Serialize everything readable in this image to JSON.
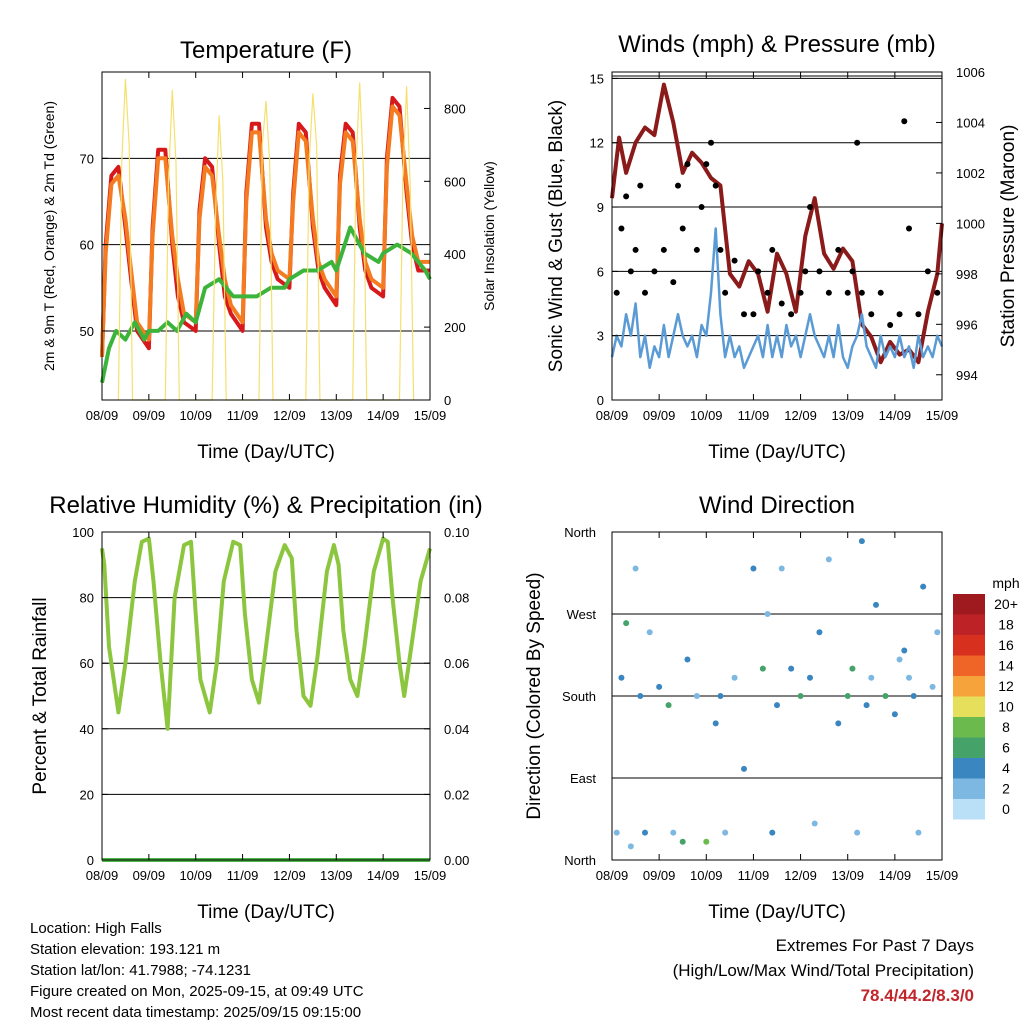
{
  "chart_data": [
    {
      "id": "temp",
      "type": "line",
      "title": "Temperature (F)",
      "xlabel": "Time (Day/UTC)",
      "ylabel": "2m & 9m T (Red, Orange) & 2m Td (Green)",
      "y2label": "Solar Insolation (Yellow)",
      "x_ticks": [
        "08/09",
        "09/09",
        "10/09",
        "11/09",
        "12/09",
        "13/09",
        "14/09",
        "15/09"
      ],
      "ylim": [
        42,
        80
      ],
      "y_ticks": [
        50,
        60,
        70
      ],
      "y2lim": [
        0,
        900
      ],
      "y2_ticks": [
        0,
        200,
        400,
        600,
        800
      ],
      "grid": "horizontal",
      "series": [
        {
          "color": "#d7191c",
          "x": [
            0,
            0.08,
            0.2,
            0.35,
            0.5,
            0.62,
            0.75,
            1,
            1.08,
            1.2,
            1.35,
            1.5,
            1.62,
            1.75,
            2,
            2.08,
            2.2,
            2.35,
            2.5,
            2.62,
            2.75,
            3,
            3.08,
            3.2,
            3.35,
            3.5,
            3.62,
            3.75,
            4,
            4.08,
            4.2,
            4.35,
            4.5,
            4.62,
            4.75,
            5,
            5.08,
            5.2,
            5.35,
            5.5,
            5.62,
            5.75,
            6,
            6.08,
            6.2,
            6.35,
            6.5,
            6.62,
            6.75,
            7
          ],
          "values": [
            47,
            60,
            68,
            69,
            62,
            56,
            50,
            48,
            62,
            71,
            71,
            60,
            54,
            51,
            50,
            64,
            70,
            69,
            60,
            54,
            52,
            50,
            66,
            74,
            74,
            62,
            58,
            56,
            55,
            66,
            74,
            73,
            62,
            57,
            55,
            53,
            68,
            74,
            73,
            62,
            57,
            55,
            54,
            70,
            77,
            76,
            66,
            60,
            57,
            57
          ]
        },
        {
          "color": "#f47b20",
          "x": [
            0,
            0.08,
            0.2,
            0.35,
            0.5,
            0.62,
            0.75,
            1,
            1.08,
            1.2,
            1.35,
            1.5,
            1.62,
            1.75,
            2,
            2.08,
            2.2,
            2.35,
            2.5,
            2.62,
            2.75,
            3,
            3.08,
            3.2,
            3.35,
            3.5,
            3.62,
            3.75,
            4,
            4.08,
            4.2,
            4.35,
            4.5,
            4.62,
            4.75,
            5,
            5.08,
            5.2,
            5.35,
            5.5,
            5.62,
            5.75,
            6,
            6.08,
            6.2,
            6.35,
            6.5,
            6.62,
            6.75,
            7
          ],
          "values": [
            47,
            59,
            67,
            68,
            63,
            57,
            51,
            49,
            61,
            70,
            70,
            61,
            56,
            52,
            51,
            63,
            69,
            68,
            61,
            56,
            53,
            51,
            65,
            73,
            73,
            63,
            59,
            57,
            56,
            65,
            73,
            72,
            63,
            58,
            56,
            54,
            67,
            73,
            72,
            63,
            58,
            56,
            55,
            69,
            76,
            75,
            67,
            61,
            58,
            58
          ]
        },
        {
          "color": "#3cb43c",
          "x": [
            0,
            0.15,
            0.3,
            0.5,
            0.7,
            0.9,
            1,
            1.2,
            1.4,
            1.6,
            1.8,
            2,
            2.2,
            2.5,
            2.8,
            3,
            3.3,
            3.6,
            3.9,
            4,
            4.3,
            4.6,
            4.9,
            5,
            5.3,
            5.6,
            5.9,
            6,
            6.3,
            6.6,
            6.9,
            7
          ],
          "values": [
            44,
            48,
            50,
            49,
            51,
            49,
            50,
            50,
            51,
            50,
            52,
            51,
            55,
            56,
            54,
            54,
            54,
            55,
            55,
            56,
            57,
            57,
            58,
            57,
            62,
            59,
            58,
            59,
            60,
            59,
            57,
            56
          ]
        },
        {
          "color": "#f5e06e",
          "axis": "y2",
          "x": [
            0.35,
            0.42,
            0.5,
            0.58,
            0.65,
            1.35,
            1.42,
            1.5,
            1.58,
            1.65,
            2.35,
            2.42,
            2.5,
            2.58,
            2.65,
            3.35,
            3.42,
            3.5,
            3.58,
            3.65,
            4.35,
            4.42,
            4.5,
            4.58,
            4.65,
            5.35,
            5.42,
            5.5,
            5.58,
            5.65,
            6.35,
            6.42,
            6.5,
            6.58,
            6.65
          ],
          "values": [
            0,
            650,
            880,
            700,
            0,
            0,
            600,
            850,
            650,
            0,
            0,
            500,
            780,
            600,
            0,
            0,
            700,
            820,
            650,
            0,
            0,
            650,
            840,
            700,
            0,
            0,
            640,
            870,
            620,
            0,
            0,
            600,
            860,
            580,
            0
          ]
        }
      ]
    },
    {
      "id": "wind",
      "type": "line",
      "title": "Winds (mph) & Pressure (mb)",
      "xlabel": "Time (Day/UTC)",
      "ylabel": "Sonic Wind & Gust (Blue, Black)",
      "y2label": "Station Pressure (Maroon)",
      "x_ticks": [
        "08/09",
        "09/09",
        "10/09",
        "11/09",
        "12/09",
        "13/09",
        "14/09",
        "15/09"
      ],
      "ylim": [
        0,
        15.3
      ],
      "y_ticks": [
        0,
        3,
        6,
        9,
        12,
        15
      ],
      "y2lim": [
        993,
        1006
      ],
      "y2_ticks": [
        994,
        996,
        998,
        1000,
        1002,
        1004,
        1006
      ],
      "grid": "horizontal",
      "series": [
        {
          "color": "#8b1a1a",
          "axis": "y2",
          "x": [
            0,
            0.15,
            0.3,
            0.5,
            0.7,
            0.9,
            1.1,
            1.3,
            1.5,
            1.7,
            1.9,
            2.1,
            2.3,
            2.5,
            2.7,
            2.9,
            3.1,
            3.3,
            3.5,
            3.7,
            3.9,
            4.1,
            4.3,
            4.5,
            4.7,
            4.9,
            5.1,
            5.3,
            5.5,
            5.7,
            5.9,
            6.1,
            6.3,
            6.5,
            6.7,
            6.9,
            7
          ],
          "values": [
            1001,
            1003.4,
            1002,
            1003.2,
            1003.8,
            1003.5,
            1005.5,
            1004,
            1002,
            1002.8,
            1002.4,
            1001.8,
            1001.5,
            998,
            997.5,
            998.5,
            998,
            996.5,
            998.8,
            998,
            996.5,
            999.5,
            1001,
            998.8,
            998.2,
            999,
            998.5,
            996,
            995.5,
            994.5,
            995.3,
            994.8,
            995,
            994.5,
            996.5,
            998,
            1000
          ]
        },
        {
          "color": "#5b9bd5",
          "x": [
            0,
            0.1,
            0.2,
            0.3,
            0.4,
            0.5,
            0.6,
            0.7,
            0.8,
            0.9,
            1,
            1.1,
            1.2,
            1.3,
            1.4,
            1.5,
            1.6,
            1.7,
            1.8,
            1.9,
            2,
            2.1,
            2.2,
            2.3,
            2.4,
            2.5,
            2.6,
            2.7,
            2.8,
            2.9,
            3,
            3.1,
            3.2,
            3.3,
            3.4,
            3.5,
            3.6,
            3.7,
            3.8,
            3.9,
            4,
            4.1,
            4.2,
            4.3,
            4.4,
            4.5,
            4.6,
            4.7,
            4.8,
            4.9,
            5,
            5.1,
            5.2,
            5.3,
            5.4,
            5.5,
            5.6,
            5.7,
            5.8,
            5.9,
            6,
            6.1,
            6.2,
            6.3,
            6.4,
            6.5,
            6.6,
            6.7,
            6.8,
            6.9,
            7
          ],
          "values": [
            2,
            3,
            2.5,
            4,
            3,
            4.5,
            2,
            3,
            1.5,
            2.5,
            2,
            3.5,
            2,
            3,
            4,
            3,
            2.5,
            3,
            2,
            3.5,
            3,
            5,
            8,
            4,
            2,
            3,
            2,
            2.5,
            1.5,
            2,
            2.5,
            3,
            2,
            3.5,
            2,
            3,
            2,
            3.5,
            2.5,
            3,
            2,
            3,
            4,
            3,
            2.5,
            2,
            3,
            2,
            3.5,
            2,
            1.5,
            2.5,
            3,
            4,
            2.5,
            2,
            1.5,
            3,
            2,
            2.5,
            2,
            3,
            2,
            2.5,
            1.5,
            3,
            2,
            2.5,
            2,
            3,
            2.5
          ]
        },
        {
          "color": "#000000",
          "kind": "scatter",
          "x": [
            0.1,
            0.2,
            0.3,
            0.4,
            0.5,
            0.6,
            0.7,
            0.9,
            1.1,
            1.3,
            1.4,
            1.5,
            1.6,
            1.8,
            1.9,
            2.0,
            2.1,
            2.2,
            2.3,
            2.4,
            2.6,
            2.8,
            3.0,
            3.1,
            3.3,
            3.4,
            3.6,
            3.8,
            4.0,
            4.1,
            4.2,
            4.4,
            4.6,
            4.8,
            5.0,
            5.1,
            5.2,
            5.3,
            5.5,
            5.7,
            5.9,
            6.1,
            6.2,
            6.3,
            6.5,
            6.7,
            6.9
          ],
          "values": [
            5,
            8,
            9.5,
            6,
            7,
            10,
            5,
            6,
            7,
            5.5,
            10,
            8,
            11,
            7,
            9,
            11,
            12,
            10,
            7,
            5,
            6.5,
            4,
            4,
            6,
            5,
            7,
            4.5,
            4,
            5,
            6,
            9,
            6,
            5,
            7,
            5,
            6,
            12,
            5,
            4,
            5,
            3.5,
            4,
            13,
            8,
            4,
            6,
            5
          ]
        }
      ]
    },
    {
      "id": "rh",
      "type": "line",
      "title": "Relative Humidity (%) & Precipitation (in)",
      "xlabel": "Time (Day/UTC)",
      "ylabel": "Percent & Total Rainfall",
      "x_ticks": [
        "08/09",
        "09/09",
        "10/09",
        "11/09",
        "12/09",
        "13/09",
        "14/09",
        "15/09"
      ],
      "ylim": [
        0,
        100
      ],
      "y_ticks": [
        0,
        20,
        40,
        60,
        80,
        100
      ],
      "y2lim": [
        0,
        0.1
      ],
      "y2_ticks": [
        "0.00",
        "0.02",
        "0.04",
        "0.06",
        "0.08",
        "0.10"
      ],
      "grid": "horizontal",
      "series": [
        {
          "color": "#8cc63f",
          "x": [
            0,
            0.05,
            0.15,
            0.25,
            0.35,
            0.5,
            0.7,
            0.85,
            1,
            1.1,
            1.25,
            1.4,
            1.55,
            1.75,
            1.9,
            2,
            2.1,
            2.3,
            2.45,
            2.6,
            2.8,
            2.95,
            3.05,
            3.2,
            3.35,
            3.5,
            3.7,
            3.9,
            4.05,
            4.15,
            4.3,
            4.45,
            4.6,
            4.8,
            4.95,
            5.05,
            5.15,
            5.3,
            5.45,
            5.6,
            5.8,
            6,
            6.1,
            6.2,
            6.35,
            6.45,
            6.6,
            6.8,
            7
          ],
          "values": [
            95,
            90,
            65,
            55,
            45,
            60,
            85,
            97,
            98,
            85,
            60,
            40,
            80,
            96,
            97,
            75,
            55,
            45,
            60,
            85,
            97,
            96,
            75,
            55,
            48,
            65,
            88,
            96,
            92,
            70,
            50,
            47,
            62,
            88,
            96,
            90,
            70,
            55,
            50,
            65,
            88,
            98,
            97,
            80,
            60,
            50,
            65,
            85,
            95
          ]
        },
        {
          "color": "#4db848",
          "x": [
            0,
            7
          ],
          "values": [
            0,
            0
          ]
        }
      ]
    },
    {
      "id": "dir",
      "type": "scatter",
      "title": "Wind Direction",
      "xlabel": "Time (Day/UTC)",
      "ylabel": "Direction (Colored By Speed)",
      "x_ticks": [
        "08/09",
        "09/09",
        "10/09",
        "11/09",
        "12/09",
        "13/09",
        "14/09",
        "15/09"
      ],
      "y_ticks": [
        "North",
        "East",
        "South",
        "West",
        "North"
      ],
      "ylim": [
        0,
        360
      ],
      "grid": "horizontal",
      "legend_title": "mph",
      "legend": [
        "20+",
        "18",
        "16",
        "14",
        "12",
        "10",
        "8",
        "6",
        "4",
        "2",
        "0"
      ],
      "legend_colors": [
        "#9e1a1e",
        "#bd2227",
        "#d7301f",
        "#ef6528",
        "#f6a33b",
        "#e5df5b",
        "#6aba4d",
        "#45a36a",
        "#3a86c0",
        "#7db8e3",
        "#b9e0f7"
      ],
      "x": [
        0.1,
        0.2,
        0.3,
        0.4,
        0.5,
        0.6,
        0.7,
        0.8,
        1.0,
        1.2,
        1.3,
        1.5,
        1.6,
        1.8,
        2.0,
        2.2,
        2.3,
        2.4,
        2.6,
        2.8,
        3.0,
        3.2,
        3.3,
        3.4,
        3.5,
        3.6,
        3.8,
        4.0,
        4.2,
        4.3,
        4.4,
        4.6,
        4.8,
        5.0,
        5.1,
        5.2,
        5.3,
        5.4,
        5.5,
        5.6,
        5.8,
        6.0,
        6.1,
        6.2,
        6.3,
        6.4,
        6.5,
        6.6,
        6.8,
        6.9
      ],
      "values": [
        30,
        200,
        260,
        15,
        320,
        180,
        30,
        250,
        190,
        170,
        30,
        20,
        220,
        180,
        20,
        150,
        180,
        30,
        200,
        100,
        320,
        210,
        270,
        30,
        170,
        320,
        210,
        180,
        200,
        40,
        250,
        330,
        150,
        180,
        210,
        30,
        350,
        170,
        200,
        280,
        180,
        160,
        220,
        230,
        200,
        180,
        30,
        300,
        190,
        250
      ],
      "speeds": [
        2,
        4,
        6,
        2,
        1,
        4,
        3,
        2,
        4,
        5,
        1,
        6,
        3,
        2,
        7,
        4,
        3,
        2,
        1,
        3,
        4,
        5,
        2,
        3,
        4,
        1,
        3,
        5,
        4,
        2,
        3,
        1,
        4,
        6,
        5,
        2,
        3,
        4,
        1,
        3,
        5,
        4,
        2,
        3,
        1,
        4,
        2,
        3,
        1,
        2
      ]
    }
  ],
  "info": {
    "location": "Location: High Falls",
    "elevation": "Station elevation: 193.121 m",
    "latlon": "Station lat/lon: 41.7988; -74.1231",
    "created": "Figure created on Mon, 2025-09-15, at 09:49 UTC",
    "recent": "Most recent data timestamp: 2025/09/15 09:15:00"
  },
  "extremes": {
    "line1": "Extremes For Past 7 Days",
    "line2": "(High/Low/Max Wind/Total Precipitation)",
    "values": "78.4/44.2/8.3/0"
  }
}
